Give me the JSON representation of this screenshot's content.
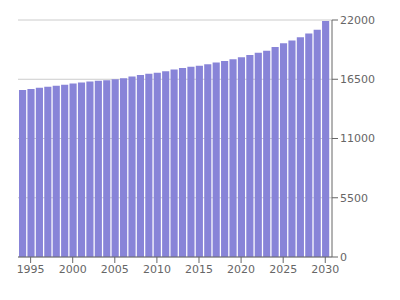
{
  "chart_data": {
    "type": "bar",
    "x": [
      1994,
      1995,
      1996,
      1997,
      1998,
      1999,
      2000,
      2001,
      2002,
      2003,
      2004,
      2005,
      2006,
      2007,
      2008,
      2009,
      2010,
      2011,
      2012,
      2013,
      2014,
      2015,
      2016,
      2017,
      2018,
      2019,
      2020,
      2021,
      2022,
      2023,
      2024,
      2025,
      2026,
      2027,
      2028,
      2029,
      2030
    ],
    "values": [
      15500,
      15600,
      15700,
      15800,
      15900,
      16000,
      16100,
      16200,
      16300,
      16350,
      16400,
      16500,
      16600,
      16750,
      16900,
      17000,
      17100,
      17250,
      17400,
      17550,
      17650,
      17750,
      17900,
      18050,
      18200,
      18350,
      18550,
      18750,
      18950,
      19150,
      19500,
      19850,
      20100,
      20400,
      20750,
      21100,
      21900
    ],
    "color": "#8884d8",
    "xlim": [
      1993.5,
      2030.8
    ],
    "xticks": [
      1995,
      2000,
      2005,
      2010,
      2015,
      2020,
      2025,
      2030
    ],
    "ylim": [
      0,
      22000
    ],
    "yticks": [
      0,
      5500,
      11000,
      16500,
      22000
    ],
    "grid": true
  }
}
